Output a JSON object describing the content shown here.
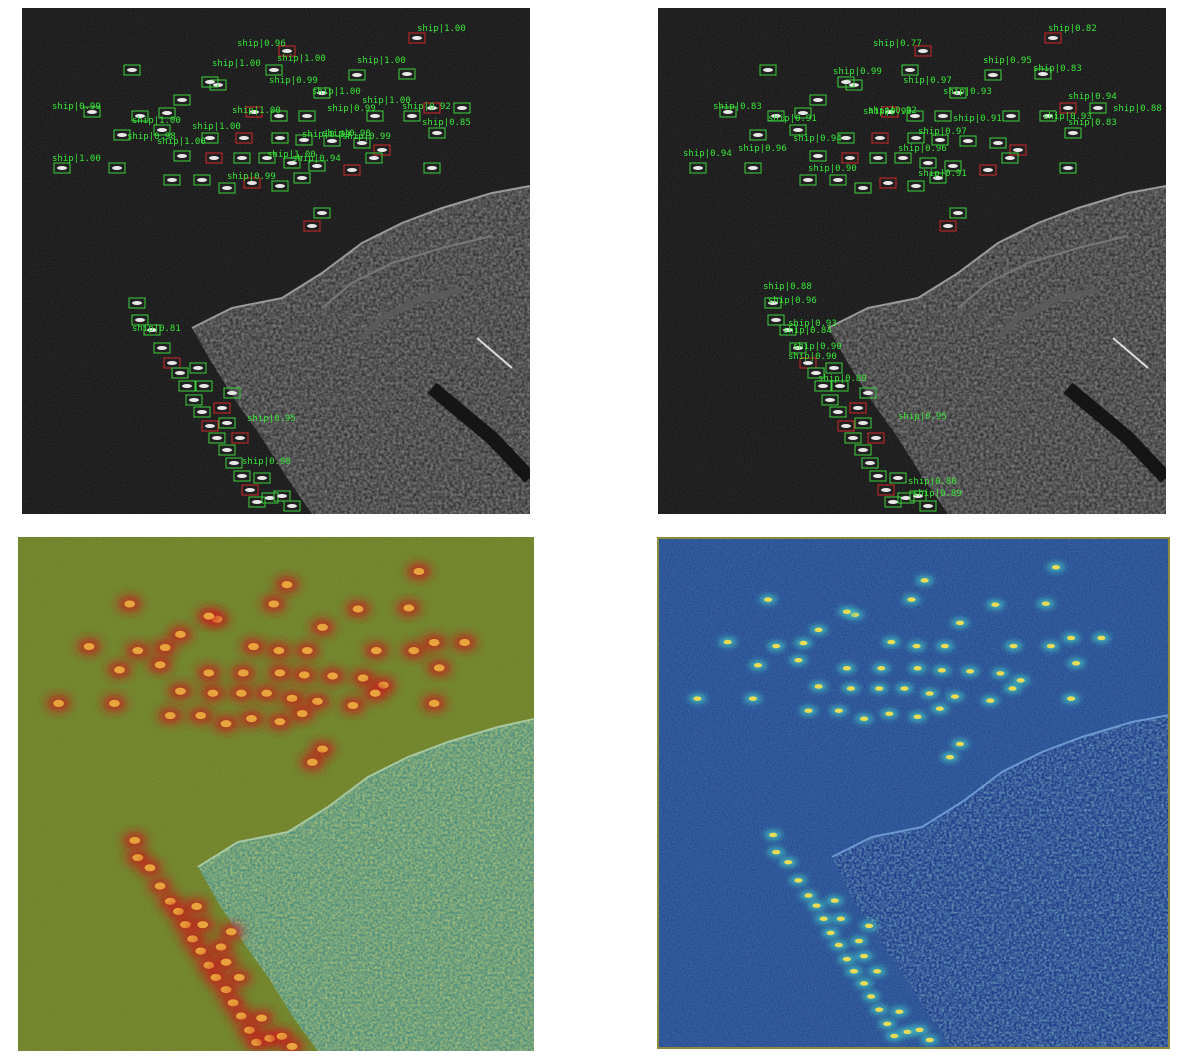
{
  "colors": {
    "sar_background": "#0d0d0d",
    "detection_box": "#3cd23c",
    "missed_box": "#d22828",
    "label_text": "#38e838",
    "heatmap_a_base": "#6f7a16",
    "heatmap_a_hot": "#c81e1e",
    "heatmap_b_base": "#1f3f86",
    "heatmap_b_hot": "#ffe14a"
  },
  "panels": {
    "top_left": {
      "labels": [
        "ship|1.00",
        "ship|0.96",
        "ship|1.00",
        "ship|1.00",
        "ship|1.00",
        "ship|0.99",
        "ship|1.00",
        "ship|1.00",
        "ship|0.99",
        "ship|1.00",
        "ship|0.99",
        "ship|1.00",
        "ship|0.92",
        "ship|1.00",
        "ship|0.85",
        "ship|0.98",
        "ship|1.00",
        "ship|0.99",
        "ship|0.99",
        "ship|1.00",
        "ship|1.00",
        "ship|0.94",
        "ship|0.99",
        "ship|0.81",
        "ship|0.95",
        "ship|0.98",
        "ship|0.98"
      ]
    },
    "top_right": {
      "labels": [
        "ship|0.82",
        "ship|0.77",
        "ship|0.95",
        "ship|0.83",
        "ship|0.99",
        "ship|0.97",
        "ship|0.94",
        "ship|0.93",
        "ship|0.83",
        "ship|0.93",
        "ship|0.88",
        "ship|0.91",
        "ship|0.93",
        "ship|0.92",
        "ship|0.94",
        "ship|0.96",
        "ship|0.83",
        "ship|0.97",
        "ship|0.91",
        "ship|0.94",
        "ship|0.96",
        "ship|0.90",
        "ship|0.91",
        "ship|0.90",
        "ship|0.88",
        "ship|0.96",
        "ship|0.93",
        "ship|0.84",
        "ship|0.90",
        "ship|0.89",
        "ship|0.95",
        "ship|0.80",
        "ship|0.89"
      ]
    },
    "bottom_left": {},
    "bottom_right": {}
  }
}
